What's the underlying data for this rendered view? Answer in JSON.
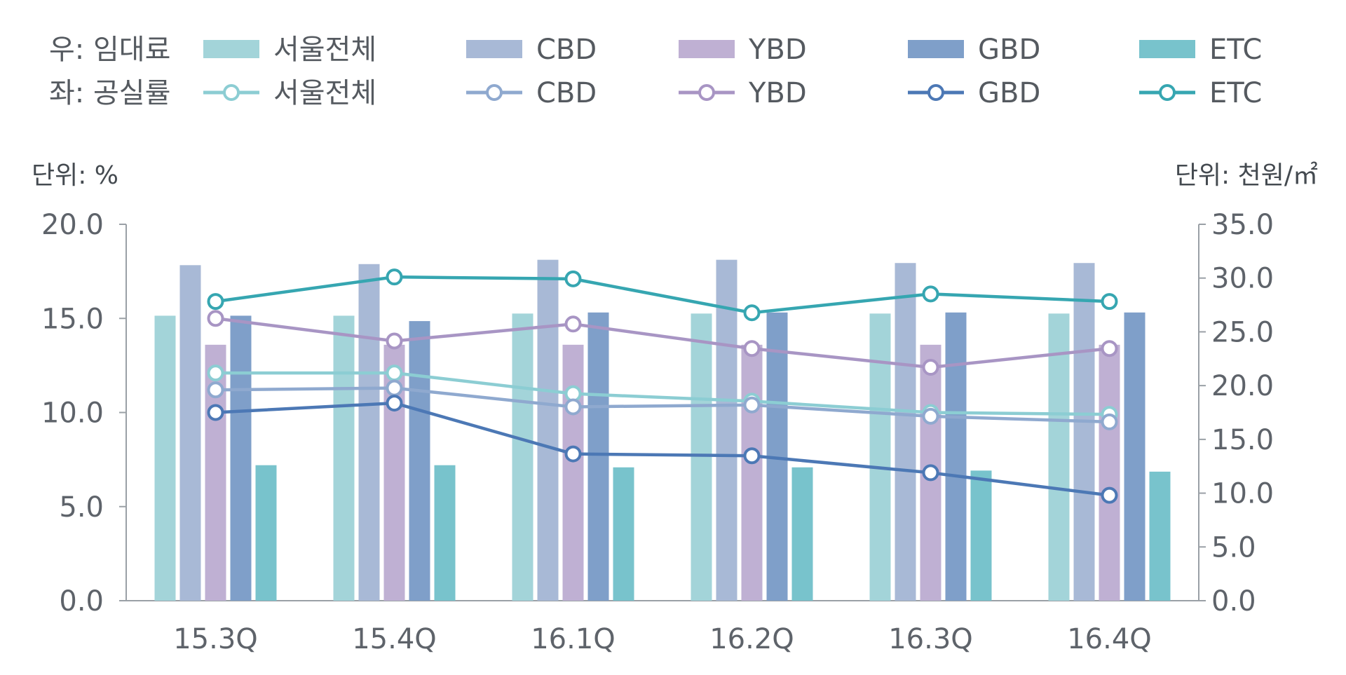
{
  "chart_data": {
    "type": "bar+line",
    "categories": [
      "15.3Q",
      "15.4Q",
      "16.1Q",
      "16.2Q",
      "16.3Q",
      "16.4Q"
    ],
    "legend": {
      "bar_group_label": "우: 임대료",
      "line_group_label": "좌: 공실률",
      "entries": [
        "서울전체",
        "CBD",
        "YBD",
        "GBD",
        "ETC"
      ]
    },
    "left_axis": {
      "unit_label": "단위: %",
      "ylim": [
        0,
        20
      ],
      "ticks": [
        "0.0",
        "5.0",
        "10.0",
        "15.0",
        "20.0"
      ],
      "tick_values": [
        0,
        5,
        10,
        15,
        20
      ]
    },
    "right_axis": {
      "unit_label": "단위: 천원/㎡",
      "ylim": [
        0,
        35
      ],
      "ticks": [
        "0.0",
        "5.0",
        "10.0",
        "15.0",
        "20.0",
        "25.0",
        "30.0",
        "35.0"
      ],
      "tick_values": [
        0,
        5,
        10,
        15,
        20,
        25,
        30,
        35
      ]
    },
    "bar_series": [
      {
        "name": "서울전체",
        "axis": "right",
        "color": "#a3d4d9",
        "values": [
          26.5,
          26.5,
          26.7,
          26.7,
          26.7,
          26.7
        ]
      },
      {
        "name": "CBD",
        "axis": "right",
        "color": "#a8b9d6",
        "values": [
          31.2,
          31.3,
          31.7,
          31.7,
          31.4,
          31.4
        ]
      },
      {
        "name": "YBD",
        "axis": "right",
        "color": "#bfb0d3",
        "values": [
          23.8,
          23.8,
          23.8,
          23.8,
          23.8,
          23.8
        ]
      },
      {
        "name": "GBD",
        "axis": "right",
        "color": "#7f9fc9",
        "values": [
          26.5,
          26.0,
          26.8,
          26.8,
          26.8,
          26.8
        ]
      },
      {
        "name": "ETC",
        "axis": "right",
        "color": "#78c3cc",
        "values": [
          12.6,
          12.6,
          12.4,
          12.4,
          12.1,
          12.0
        ]
      }
    ],
    "line_series": [
      {
        "name": "서울전체",
        "axis": "left",
        "color": "#8ccdd3",
        "values": [
          12.1,
          12.1,
          11.0,
          10.6,
          10.0,
          9.9
        ]
      },
      {
        "name": "CBD",
        "axis": "left",
        "color": "#8fa9cf",
        "values": [
          11.2,
          11.3,
          10.3,
          10.4,
          9.8,
          9.5
        ]
      },
      {
        "name": "YBD",
        "axis": "left",
        "color": "#a895c4",
        "values": [
          15.0,
          13.8,
          14.7,
          13.4,
          12.4,
          13.4
        ]
      },
      {
        "name": "GBD",
        "axis": "left",
        "color": "#4c78b5",
        "values": [
          10.0,
          10.5,
          7.8,
          7.7,
          6.8,
          5.6
        ]
      },
      {
        "name": "ETC",
        "axis": "left",
        "color": "#36a6b1",
        "values": [
          15.9,
          17.2,
          17.1,
          15.3,
          16.3,
          15.9
        ]
      }
    ]
  }
}
